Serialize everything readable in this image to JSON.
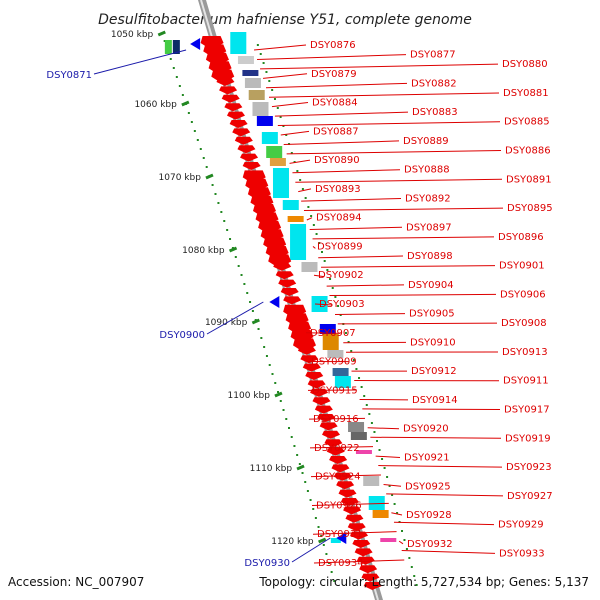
{
  "title": "Desulfitobacterium hafniense Y51, complete genome",
  "footer": {
    "accession": "Accession: NC_007907",
    "summary": "Topology: circular; Length: 5,727,534 bp; Genes: 5,137"
  },
  "scale_ticks": [
    {
      "label": "1050 kbp",
      "kbp": 1050
    },
    {
      "label": "1060 kbp",
      "kbp": 1060
    },
    {
      "label": "1070 kbp",
      "kbp": 1070
    },
    {
      "label": "1080 kbp",
      "kbp": 1080
    },
    {
      "label": "1090 kbp",
      "kbp": 1090
    },
    {
      "label": "1100 kbp",
      "kbp": 1100
    },
    {
      "label": "1110 kbp",
      "kbp": 1110
    },
    {
      "label": "1120 kbp",
      "kbp": 1120
    }
  ],
  "reverse_strand_genes": [
    "DSY0871",
    "DSY0900",
    "DSY0930"
  ],
  "forward_strand_genes": [
    "DSY0876",
    "DSY0877",
    "DSY0880",
    "DSY0879",
    "DSY0882",
    "DSY0881",
    "DSY0884",
    "DSY0883",
    "DSY0885",
    "DSY0887",
    "DSY0889",
    "DSY0886",
    "DSY0890",
    "DSY0888",
    "DSY0891",
    "DSY0893",
    "DSY0892",
    "DSY0895",
    "DSY0894",
    "DSY0897",
    "DSY0896",
    "DSY0899",
    "DSY0898",
    "DSY0901",
    "DSY0902",
    "DSY0904",
    "DSY0906",
    "DSY0903",
    "DSY0905",
    "DSY0908",
    "DSY0907",
    "DSY0910",
    "DSY0913",
    "DSY0909",
    "DSY0912",
    "DSY0911",
    "DSY0915",
    "DSY0914",
    "DSY0917",
    "DSY0916",
    "DSY0920",
    "DSY0919",
    "DSY0922",
    "DSY0921",
    "DSY0923",
    "DSY0924",
    "DSY0925",
    "DSY0927",
    "DSY0926",
    "DSY0928",
    "DSY0929",
    "DSY0931",
    "DSY0932",
    "DSY0933",
    "DSY0934"
  ],
  "colors": {
    "forward_gene": "#ee0000",
    "reverse_gene": "#0000ee",
    "label_forward": "#dd0000",
    "label_reverse": "#1a1aaa",
    "tick": "#228822",
    "cog_cyan": "#00e5ee",
    "backbone": "#999999"
  }
}
